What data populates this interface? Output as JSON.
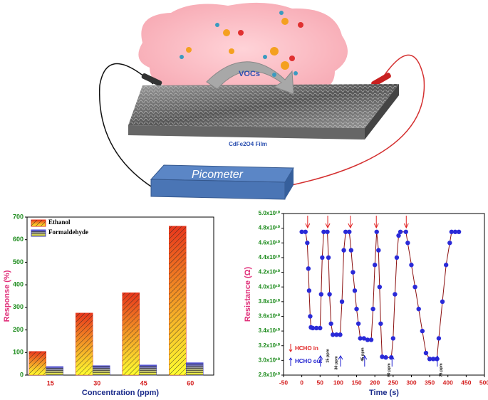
{
  "diagram": {
    "cloud_label": "VOCs",
    "film_label": "CdFe2O4 Film",
    "device_label": "Picometer"
  },
  "chart_data": [
    {
      "type": "bar",
      "xlabel": "Concentration (ppm)",
      "ylabel": "Response (%)",
      "categories": [
        "15",
        "30",
        "45",
        "60"
      ],
      "series": [
        {
          "name": "Ethanol",
          "color": "#e8361c",
          "values": [
            105,
            275,
            365,
            660
          ]
        },
        {
          "name": "Formaldehyde",
          "color": "#4a4ad8",
          "values": [
            38,
            42,
            45,
            55
          ]
        }
      ],
      "ylim": [
        0,
        700
      ],
      "yticks": [
        0,
        100,
        200,
        300,
        400,
        500,
        600,
        700
      ],
      "legend": "upper left"
    },
    {
      "type": "line",
      "xlabel": "Time (s)",
      "ylabel": "Resistance (Ω)",
      "color": "#2a2ad8",
      "line_color": "#8b1010",
      "x": [
        0,
        10,
        15,
        18,
        20,
        23,
        25,
        30,
        40,
        50,
        53,
        56,
        60,
        70,
        73,
        76,
        80,
        85,
        95,
        105,
        110,
        115,
        120,
        130,
        135,
        140,
        145,
        150,
        155,
        160,
        170,
        180,
        190,
        195,
        200,
        205,
        210,
        213,
        216,
        220,
        230,
        245,
        250,
        255,
        260,
        265,
        270,
        285,
        290,
        300,
        310,
        320,
        330,
        340,
        350,
        360,
        370,
        375,
        385,
        395,
        405,
        410,
        420,
        430
      ],
      "values": [
        47500000000.0,
        47500000000.0,
        46000000000.0,
        42500000000.0,
        39500000000.0,
        36000000000.0,
        34500000000.0,
        34400000000.0,
        34400000000.0,
        34400000000.0,
        39000000000.0,
        44000000000.0,
        47500000000.0,
        47500000000.0,
        44000000000.0,
        39000000000.0,
        35000000000.0,
        33500000000.0,
        33500000000.0,
        33500000000.0,
        38000000000.0,
        45000000000.0,
        47500000000.0,
        47500000000.0,
        45000000000.0,
        42000000000.0,
        39500000000.0,
        37000000000.0,
        35000000000.0,
        33000000000.0,
        33000000000.0,
        32800000000.0,
        32800000000.0,
        37000000000.0,
        43000000000.0,
        47500000000.0,
        45000000000.0,
        40000000000.0,
        35000000000.0,
        30500000000.0,
        30400000000.0,
        30400000000.0,
        33000000000.0,
        39000000000.0,
        44000000000.0,
        47000000000.0,
        47500000000.0,
        47500000000.0,
        46000000000.0,
        43000000000.0,
        40000000000.0,
        37000000000.0,
        34000000000.0,
        31000000000.0,
        30200000000.0,
        30200000000.0,
        30200000000.0,
        33000000000.0,
        38000000000.0,
        43000000000.0,
        46000000000.0,
        47500000000.0,
        47500000000.0,
        47500000000.0
      ],
      "xlim": [
        -50,
        500
      ],
      "xticks": [
        -50,
        0,
        50,
        100,
        150,
        200,
        250,
        300,
        350,
        400,
        450,
        500
      ],
      "ylim": [
        28000000000.0,
        50000000000.0
      ],
      "yticks": [
        {
          "value": 28000000000.0,
          "label": "2.8x10¹⁰"
        },
        {
          "value": 30000000000.0,
          "label": "3.0x10¹⁰"
        },
        {
          "value": 32000000000.0,
          "label": "3.2x10¹⁰"
        },
        {
          "value": 34000000000.0,
          "label": "3.4x10¹⁰"
        },
        {
          "value": 36000000000.0,
          "label": "3.6x10¹⁰"
        },
        {
          "value": 38000000000.0,
          "label": "3.8x10¹⁰"
        },
        {
          "value": 40000000000.0,
          "label": "4.0x10¹⁰"
        },
        {
          "value": 42000000000.0,
          "label": "4.2x10¹⁰"
        },
        {
          "value": 44000000000.0,
          "label": "4.4x10¹⁰"
        },
        {
          "value": 46000000000.0,
          "label": "4.6x10¹⁰"
        },
        {
          "value": 48000000000.0,
          "label": "4.8x10¹⁰"
        },
        {
          "value": 50000000000.0,
          "label": "5.0x10¹⁰"
        }
      ],
      "annotations": [
        "15 ppm",
        "30 ppm",
        "45 ppm",
        "60 ppm",
        "75 ppm",
        "HCHO in",
        "HCHO out"
      ]
    }
  ]
}
